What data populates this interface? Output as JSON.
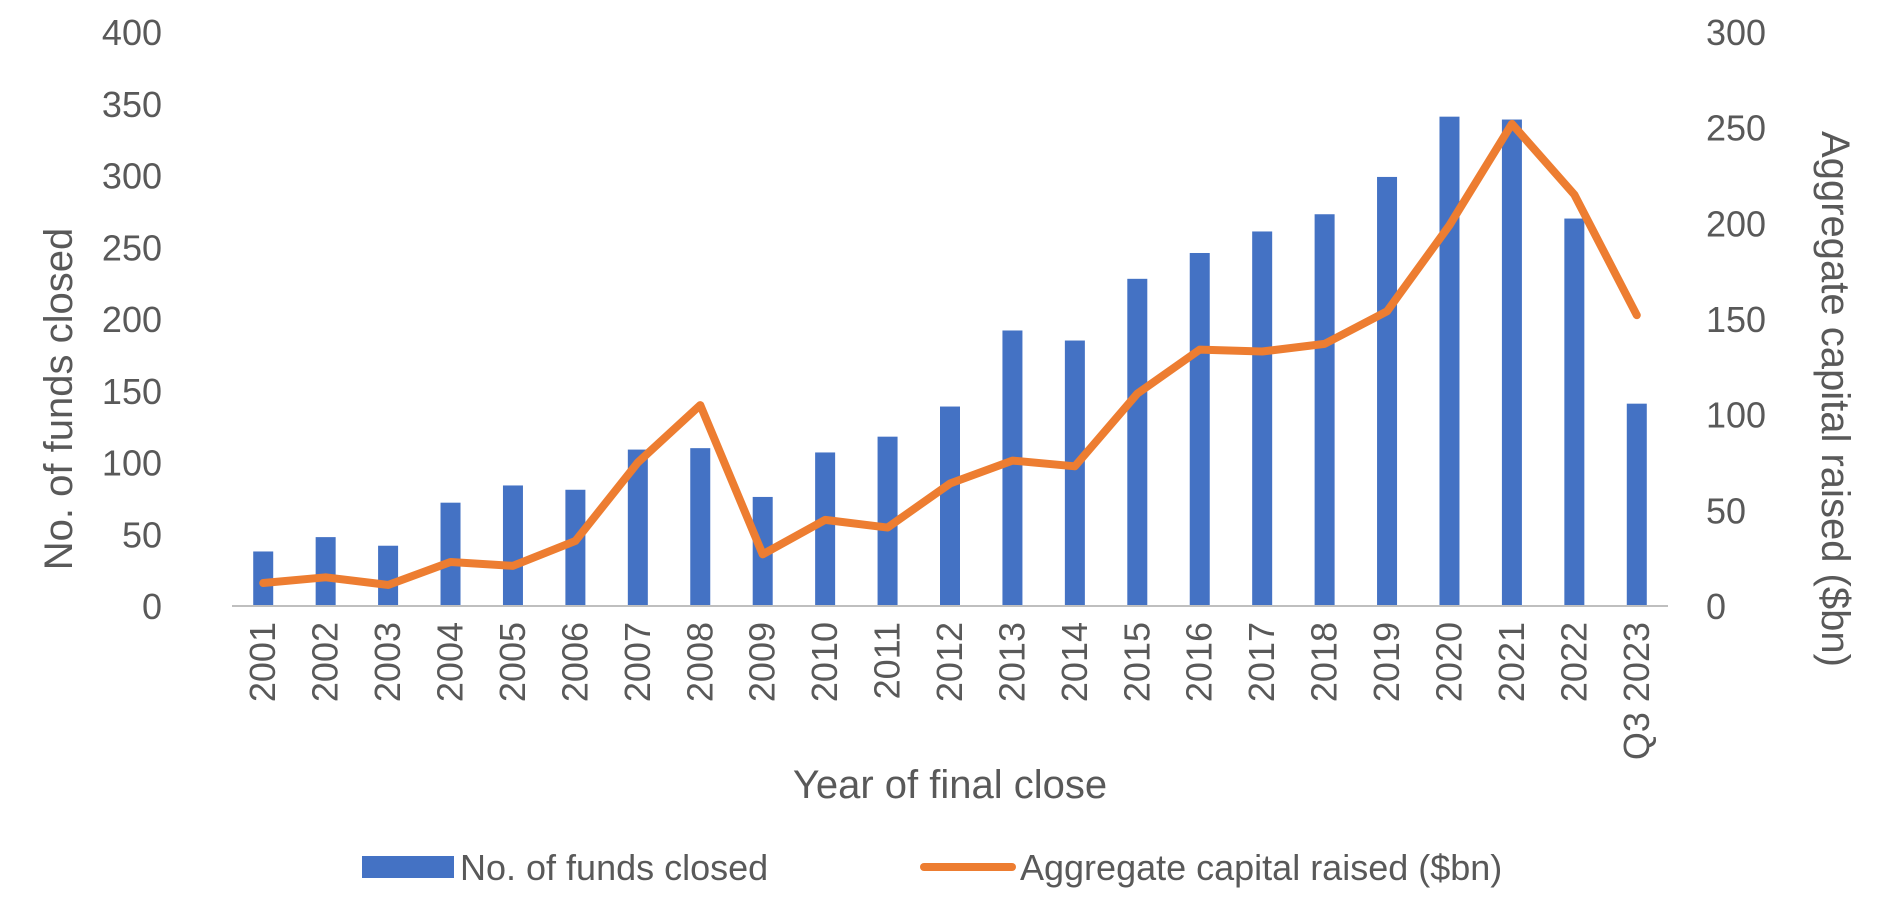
{
  "chart_data": {
    "type": "bar",
    "categories": [
      "2001",
      "2002",
      "2003",
      "2004",
      "2005",
      "2006",
      "2007",
      "2008",
      "2009",
      "2010",
      "2011",
      "2012",
      "2013",
      "2014",
      "2015",
      "2016",
      "2017",
      "2018",
      "2019",
      "2020",
      "2021",
      "2022",
      "Q3 2023"
    ],
    "series": [
      {
        "name": "No. of funds closed",
        "type": "bar",
        "axis": "left",
        "color": "#4472C4",
        "values": [
          38,
          48,
          42,
          72,
          84,
          81,
          109,
          110,
          76,
          107,
          118,
          139,
          192,
          185,
          228,
          246,
          261,
          273,
          299,
          341,
          339,
          270,
          141
        ]
      },
      {
        "name": "Aggregate capital raised ($bn)",
        "type": "line",
        "axis": "right",
        "color": "#ED7D31",
        "values": [
          12,
          15,
          11,
          23,
          21,
          34,
          75,
          105,
          27,
          45,
          41,
          64,
          76,
          73,
          111,
          134,
          133,
          137,
          154,
          199,
          252,
          215,
          152
        ]
      }
    ],
    "xlabel": "Year of final close",
    "ylabel_left": "No. of funds closed",
    "ylabel_right": "Aggregate capital raised ($bn)",
    "ylim_left": [
      0,
      400
    ],
    "yticks_left": [
      "0",
      "50",
      "100",
      "150",
      "200",
      "250",
      "300",
      "350",
      "400"
    ],
    "ylim_right": [
      0,
      300
    ],
    "yticks_right": [
      "0",
      "50",
      "100",
      "150",
      "200",
      "250",
      "300"
    ],
    "grid": false,
    "legend_position": "bottom"
  }
}
